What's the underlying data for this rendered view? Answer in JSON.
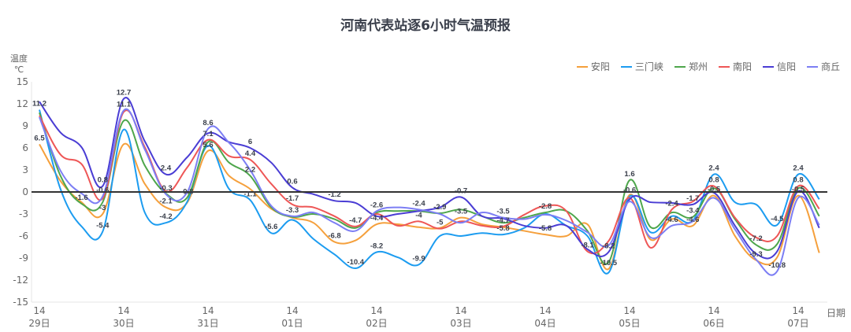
{
  "title": "河南代表站逐6小时气温预报",
  "y_axis_name": [
    "温度",
    "℃"
  ],
  "x_axis_name": "日期",
  "legend": [
    {
      "name": "安阳",
      "color": "#f5a03c"
    },
    {
      "name": "三门峡",
      "color": "#1c9cf0"
    },
    {
      "name": "郑州",
      "color": "#4ea64c"
    },
    {
      "name": "南阳",
      "color": "#ee5656"
    },
    {
      "name": "信阳",
      "color": "#4a3dd4"
    },
    {
      "name": "商丘",
      "color": "#7c7ef4"
    }
  ],
  "chart_data": {
    "type": "line",
    "title": "河南代表站逐6小时气温预报",
    "xlabel": "日期",
    "ylabel": "温度 ℃",
    "ylim": [
      -15,
      15
    ],
    "yticks": [
      15,
      12,
      9,
      6,
      3,
      0,
      -3,
      -6,
      -9,
      -12,
      -15
    ],
    "grid": false,
    "legend_position": "top-right",
    "smooth": true,
    "x_tick_labels": [
      {
        "index": 0,
        "hour": "14",
        "date": "29日"
      },
      {
        "index": 4,
        "hour": "14",
        "date": "30日"
      },
      {
        "index": 8,
        "hour": "14",
        "date": "31日"
      },
      {
        "index": 12,
        "hour": "14",
        "date": "01日"
      },
      {
        "index": 16,
        "hour": "14",
        "date": "02日"
      },
      {
        "index": 20,
        "hour": "14",
        "date": "03日"
      },
      {
        "index": 24,
        "hour": "14",
        "date": "04日"
      },
      {
        "index": 28,
        "hour": "14",
        "date": "05日"
      },
      {
        "index": 32,
        "hour": "14",
        "date": "06日"
      },
      {
        "index": 36,
        "hour": "14",
        "date": "07日"
      }
    ],
    "categories": [
      "29日14",
      "29日20",
      "30日02",
      "30日08",
      "30日14",
      "30日20",
      "31日02",
      "31日08",
      "31日14",
      "31日20",
      "01日02",
      "01日08",
      "01日14",
      "01日20",
      "02日02",
      "02日08",
      "02日14",
      "02日20",
      "03日02",
      "03日08",
      "03日14",
      "03日20",
      "04日02",
      "04日08",
      "04日14",
      "04日20",
      "05日02",
      "05日08",
      "05日14",
      "05日20",
      "06日02",
      "06日08",
      "06日14",
      "06日20",
      "07日02",
      "07日08",
      "07日14",
      "07日20"
    ],
    "series": [
      {
        "name": "安阳",
        "values": [
          6.5,
          1.5,
          -1.4,
          -3,
          6.5,
          1.1,
          -2.1,
          -1.5,
          5.6,
          2.2,
          0.4,
          -2.3,
          -3.5,
          -4.2,
          -6.8,
          -6.6,
          -4.4,
          -4.4,
          -4.8,
          -4.9,
          -3.5,
          -4.4,
          -4.8,
          -5.3,
          -5.8,
          -6.0,
          -4.4,
          -10.5,
          -0.4,
          -6.5,
          -3.7,
          -4.6,
          -0.5,
          -6.0,
          -9.3,
          -8.9,
          -0.5,
          -8.3
        ]
      },
      {
        "name": "三门峡",
        "values": [
          11.2,
          0.4,
          -4.7,
          -5.4,
          8.5,
          -2.8,
          -4.2,
          -1.4,
          6.3,
          0.4,
          -1.1,
          -5.6,
          -3.8,
          -6.4,
          -8.5,
          -10.4,
          -8.2,
          -8.9,
          -9.9,
          -6.0,
          -6.0,
          -5.6,
          -5.8,
          -4.9,
          -3.0,
          -4.6,
          -6.0,
          -11.0,
          -0.6,
          -5.5,
          -3.3,
          -3.9,
          2.4,
          -1.4,
          -1.7,
          -4.5,
          2.4,
          -1.0
        ]
      },
      {
        "name": "郑州",
        "values": [
          10.8,
          2.2,
          -1.6,
          -1.4,
          9.7,
          3.6,
          -0.2,
          -0.8,
          6.8,
          4.0,
          2.2,
          -2.1,
          -3.4,
          -3.0,
          -3.7,
          -4.9,
          -2.8,
          -2.6,
          -2.6,
          -2.9,
          -2.4,
          -3.3,
          -4.2,
          -3.5,
          -2.8,
          -2.6,
          -5.3,
          -9.6,
          1.6,
          -4.8,
          -2.8,
          -3.4,
          0.5,
          -3.7,
          -7.2,
          -7.1,
          0.5,
          -3.3
        ]
      },
      {
        "name": "南阳",
        "values": [
          10.4,
          5.1,
          3.8,
          -0.9,
          10.9,
          6.1,
          0.1,
          3.3,
          7.1,
          4.9,
          4.4,
          1.1,
          -1.7,
          -2.1,
          -3.3,
          -4.7,
          -3.0,
          -4.6,
          -4.0,
          -5.0,
          -4.0,
          -4.6,
          -4.7,
          -3.1,
          -1.9,
          -2.6,
          -8.1,
          -6.7,
          -0.8,
          -7.6,
          -2.4,
          -1.3,
          0.8,
          -3.5,
          -6.2,
          -6.0,
          0.8,
          -2.3
        ]
      },
      {
        "name": "信阳",
        "values": [
          12.3,
          8.1,
          6.1,
          0.8,
          12.7,
          6.9,
          2.4,
          4.7,
          8.0,
          6.8,
          6.0,
          4.0,
          0.6,
          -0.3,
          -1.2,
          -1.5,
          -3.3,
          -3.0,
          -2.6,
          -2.1,
          -0.7,
          -3.3,
          -3.6,
          -4.6,
          -4.9,
          -4.6,
          -7.8,
          -8.2,
          -1.0,
          -1.4,
          -1.5,
          -1.7,
          -0.1,
          -4.6,
          -8.4,
          -8.1,
          0.1,
          -4.9
        ]
      },
      {
        "name": "商丘",
        "values": [
          10.2,
          2.9,
          -0.2,
          -0.6,
          11.1,
          5.8,
          -0.3,
          -0.1,
          8.6,
          6.7,
          3.0,
          -1.9,
          -3.3,
          -2.8,
          -4.2,
          -5.3,
          -2.6,
          -2.1,
          -2.4,
          -3.0,
          -4.2,
          -2.8,
          -3.5,
          -3.7,
          -3.1,
          -3.9,
          -5.5,
          -7.3,
          -1.3,
          -6.2,
          -4.6,
          -4.0,
          -0.8,
          -5.1,
          -9.2,
          -10.8,
          -0.8,
          -4.5
        ]
      }
    ],
    "annotations": [
      {
        "text": "11.2",
        "index": 0,
        "series": "三门峡"
      },
      {
        "text": "6.5",
        "index": 0,
        "series": "安阳"
      },
      {
        "text": "-1.6",
        "index": 2,
        "series": "郑州"
      },
      {
        "text": "-3",
        "index": 3,
        "series": "安阳"
      },
      {
        "text": "-5.4",
        "index": 3,
        "series": "三门峡"
      },
      {
        "text": "0.8",
        "index": 3,
        "series": "信阳"
      },
      {
        "text": "-0.6",
        "index": 3,
        "series": "商丘"
      },
      {
        "text": "12.7",
        "index": 4,
        "series": "信阳"
      },
      {
        "text": "11.1",
        "index": 4,
        "series": "商丘"
      },
      {
        "text": "2.4",
        "index": 6,
        "series": "信阳"
      },
      {
        "text": "-0.3",
        "index": 6,
        "series": "商丘"
      },
      {
        "text": "-2.1",
        "index": 6,
        "series": "安阳"
      },
      {
        "text": "-4.2",
        "index": 6,
        "series": "三门峡"
      },
      {
        "text": "-0.8",
        "index": 7,
        "series": "郑州"
      },
      {
        "text": "8.6",
        "index": 8,
        "series": "商丘"
      },
      {
        "text": "7.1",
        "index": 8,
        "series": "南阳"
      },
      {
        "text": "5.6",
        "index": 8,
        "series": "安阳"
      },
      {
        "text": "6",
        "index": 10,
        "series": "信阳"
      },
      {
        "text": "4.4",
        "index": 10,
        "series": "南阳"
      },
      {
        "text": "2.2",
        "index": 10,
        "series": "郑州"
      },
      {
        "text": "-1.1",
        "index": 10,
        "series": "三门峡"
      },
      {
        "text": "-5.6",
        "index": 11,
        "series": "三门峡"
      },
      {
        "text": "0.6",
        "index": 12,
        "series": "信阳"
      },
      {
        "text": "-1.7",
        "index": 12,
        "series": "南阳"
      },
      {
        "text": "-3.3",
        "index": 12,
        "series": "商丘"
      },
      {
        "text": "-1.2",
        "index": 14,
        "series": "信阳"
      },
      {
        "text": "-6.8",
        "index": 14,
        "series": "安阳"
      },
      {
        "text": "-4.7",
        "index": 15,
        "series": "南阳"
      },
      {
        "text": "-10.4",
        "index": 15,
        "series": "三门峡"
      },
      {
        "text": "-2.6",
        "index": 16,
        "series": "商丘"
      },
      {
        "text": "-4.4",
        "index": 16,
        "series": "安阳"
      },
      {
        "text": "-8.2",
        "index": 16,
        "series": "三门峡"
      },
      {
        "text": "-2.4",
        "index": 18,
        "series": "商丘"
      },
      {
        "text": "-4",
        "index": 18,
        "series": "南阳"
      },
      {
        "text": "-9.9",
        "index": 18,
        "series": "三门峡"
      },
      {
        "text": "-2.9",
        "index": 19,
        "series": "郑州"
      },
      {
        "text": "-5",
        "index": 19,
        "series": "南阳"
      },
      {
        "text": "-0.7",
        "index": 20,
        "series": "信阳"
      },
      {
        "text": "-3.5",
        "index": 20,
        "series": "安阳"
      },
      {
        "text": "-3.5",
        "index": 22,
        "series": "商丘"
      },
      {
        "text": "-4.7",
        "index": 22,
        "series": "南阳"
      },
      {
        "text": "-5.8",
        "index": 22,
        "series": "三门峡"
      },
      {
        "text": "-2.8",
        "index": 24,
        "series": "郑州"
      },
      {
        "text": "-5.8",
        "index": 24,
        "series": "安阳"
      },
      {
        "text": "-8.1",
        "index": 26,
        "series": "南阳"
      },
      {
        "text": "-8.2",
        "index": 27,
        "series": "信阳"
      },
      {
        "text": "-10.5",
        "index": 27,
        "series": "安阳"
      },
      {
        "text": "1.6",
        "index": 28,
        "series": "郑州"
      },
      {
        "text": "-0.6",
        "index": 28,
        "series": "三门峡"
      },
      {
        "text": "-2.4",
        "index": 30,
        "series": "南阳"
      },
      {
        "text": "-4.6",
        "index": 30,
        "series": "商丘"
      },
      {
        "text": "-1.7",
        "index": 31,
        "series": "信阳"
      },
      {
        "text": "-3.4",
        "index": 31,
        "series": "郑州"
      },
      {
        "text": "-4.6",
        "index": 31,
        "series": "安阳"
      },
      {
        "text": "2.4",
        "index": 32,
        "series": "三门峡"
      },
      {
        "text": "0.8",
        "index": 32,
        "series": "南阳"
      },
      {
        "text": "-0.5",
        "index": 32,
        "series": "安阳"
      },
      {
        "text": "-7.2",
        "index": 34,
        "series": "郑州"
      },
      {
        "text": "-9.3",
        "index": 34,
        "series": "安阳"
      },
      {
        "text": "-10.8",
        "index": 35,
        "series": "商丘"
      },
      {
        "text": "-4.5",
        "index": 35,
        "series": "三门峡"
      },
      {
        "text": "2.4",
        "index": 36,
        "series": "三门峡"
      },
      {
        "text": "0.8",
        "index": 36,
        "series": "南阳"
      },
      {
        "text": "-0.5",
        "index": 36,
        "series": "安阳"
      }
    ]
  }
}
